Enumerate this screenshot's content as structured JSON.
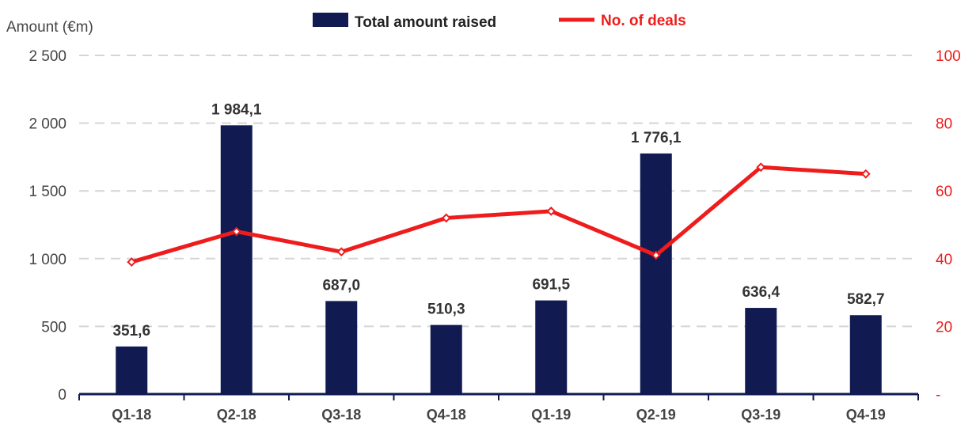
{
  "chart_data": {
    "type": "bar",
    "title": "",
    "ylabel": "Amount (€m)",
    "categories": [
      "Q1-18",
      "Q2-18",
      "Q3-18",
      "Q4-18",
      "Q1-19",
      "Q2-19",
      "Q3-19",
      "Q4-19"
    ],
    "series": [
      {
        "name": "Total amount raised",
        "type": "bar",
        "axis": "left",
        "color": "#111b52",
        "values": [
          351.6,
          1984.1,
          687.0,
          510.3,
          691.5,
          1776.1,
          636.4,
          582.7
        ],
        "labels": [
          "351,6",
          "1 984,1",
          "687,0",
          "510,3",
          "691,5",
          "1 776,1",
          "636,4",
          "582,7"
        ]
      },
      {
        "name": "No. of deals",
        "type": "line",
        "axis": "right",
        "color": "#ee1c1c",
        "values": [
          39,
          48,
          42,
          52,
          54,
          41,
          67,
          65
        ]
      }
    ],
    "y_left": {
      "range": [
        0,
        2500
      ],
      "ticks": [
        0,
        500,
        1000,
        1500,
        2000,
        2500
      ],
      "tick_labels": [
        "0",
        "500",
        "1 000",
        "1 500",
        "2 000",
        "2 500"
      ]
    },
    "y_right": {
      "range": [
        0,
        100
      ],
      "ticks": [
        0,
        20,
        40,
        60,
        80,
        100
      ],
      "tick_labels": [
        "-",
        "20",
        "40",
        "60",
        "80",
        "100"
      ],
      "color": "#ee1c1c"
    },
    "grid": "horizontal-dashed",
    "legend": "top-center",
    "colors": {
      "axis_line": "#111b52",
      "grid": "#d5d5d5",
      "text": "#444444"
    }
  }
}
